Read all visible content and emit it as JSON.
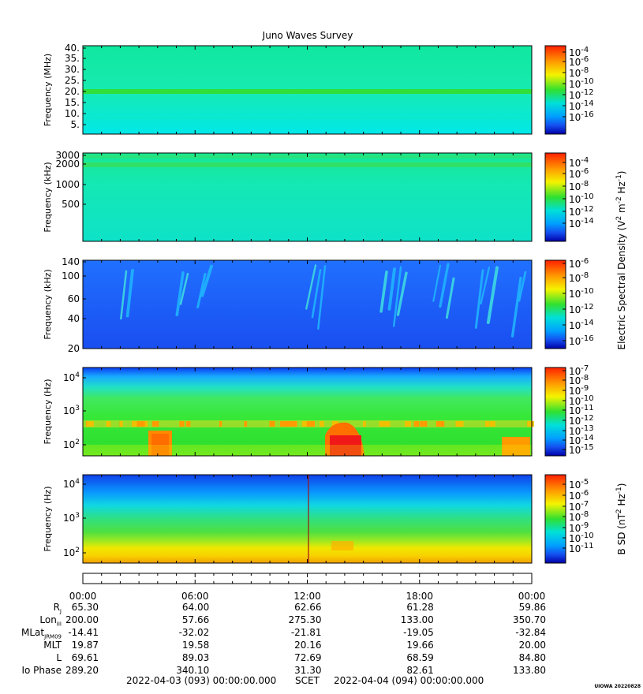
{
  "title": "Juno Waves Survey",
  "credit": "UIOWA 20220828",
  "colors": {
    "red": "#ff2000",
    "orange": "#ff9a00",
    "yellow": "#f4f400",
    "green": "#30e030",
    "cyan": "#00e0d8",
    "sky": "#00a0ff",
    "blue": "#1450f0",
    "navy": "#0000a8"
  },
  "chart_data": [
    {
      "type": "heatmap",
      "ylabel": "Frequency (MHz)",
      "yticks": [
        "40.",
        "35.",
        "30.",
        "25.",
        "20.",
        "15.",
        "10.",
        "5."
      ],
      "ylim": [
        3,
        41
      ],
      "xlim": [
        "2022-04-03 00:00",
        "2022-04-04 00:00"
      ],
      "background": "cyan-green",
      "features": [
        "narrowband emission near 21 MHz"
      ],
      "colorbar": {
        "ticks": [
          "10-4",
          "10-6",
          "10-8",
          "10-10",
          "10-12",
          "10-14",
          "10-16"
        ],
        "exp": [
          "-4",
          "-6",
          "-8",
          "-10",
          "-12",
          "-14",
          "-16"
        ],
        "label": ""
      }
    },
    {
      "type": "heatmap",
      "ylabel": "Frequency (kHz)",
      "yticks": [
        "3000",
        "2000",
        "1000",
        "500"
      ],
      "ylim": [
        150,
        3000
      ],
      "xlim": [
        "2022-04-03 00:00",
        "2022-04-04 00:00"
      ],
      "background": "cyan-green",
      "features": [
        "band near 2000 kHz"
      ],
      "colorbar": {
        "ticks": [
          "10-4",
          "10-6",
          "10-8",
          "10-10",
          "10-12",
          "10-14"
        ],
        "exp": [
          "-4",
          "-6",
          "-8",
          "-10",
          "-12",
          "-14"
        ],
        "label": "Electric Spectral Density (V2 m-2 Hz-1)"
      }
    },
    {
      "type": "heatmap",
      "ylabel": "Frequency (kHz)",
      "yticks": [
        "140",
        "100",
        "60",
        "40",
        "20"
      ],
      "ylim": [
        20,
        140
      ],
      "xlim": [
        "2022-04-03 00:00",
        "2022-04-04 00:00"
      ],
      "background": "blue",
      "features": [
        "drifting cyan emission streaks"
      ],
      "colorbar": {
        "ticks": [
          "10-6",
          "10-8",
          "10-10",
          "10-12",
          "10-14",
          "10-16"
        ],
        "exp": [
          "-6",
          "-8",
          "-10",
          "-12",
          "-14",
          "-16"
        ],
        "label": ""
      }
    },
    {
      "type": "heatmap",
      "ylabel": "Frequency (Hz)",
      "yticks": [
        "104",
        "103",
        "102"
      ],
      "yexp": [
        "4",
        "3",
        "2"
      ],
      "ylim": [
        50,
        20000
      ],
      "xlim": [
        "2022-04-03 00:00",
        "2022-04-04 00:00"
      ],
      "background": "green-blue",
      "features": [
        "orange band near 350 Hz",
        "red bursts near 04:00, 13:30, 22:30"
      ],
      "colorbar": {
        "ticks": [
          "10-7",
          "10-8",
          "10-9",
          "10-10",
          "10-11",
          "10-12",
          "10-13",
          "10-14",
          "10-15"
        ],
        "exp": [
          "-7",
          "-8",
          "-9",
          "-10",
          "-11",
          "-12",
          "-13",
          "-14",
          "-15"
        ],
        "label": ""
      }
    },
    {
      "type": "heatmap",
      "ylabel": "Frequency (Hz)",
      "yticks": [
        "104",
        "103",
        "102"
      ],
      "yexp": [
        "4",
        "3",
        "2"
      ],
      "ylim": [
        50,
        20000
      ],
      "xlim": [
        "2022-04-03 00:00",
        "2022-04-04 00:00"
      ],
      "background": "yellow-green-blue",
      "features": [
        "vertical line near 12:00"
      ],
      "colorbar": {
        "ticks": [
          "10-5",
          "10-6",
          "10-7",
          "10-8",
          "10-9",
          "10-10",
          "10-11"
        ],
        "exp": [
          "-5",
          "-6",
          "-7",
          "-8",
          "-9",
          "-10",
          "-11"
        ],
        "label": "B SD (nT2 Hz-1)"
      }
    }
  ],
  "time_ticks": [
    "00:00",
    "06:00",
    "12:00",
    "18:00",
    "00:00"
  ],
  "ephemeris": [
    {
      "label": "R",
      "sub": "J",
      "values": [
        "65.30",
        "64.00",
        "62.66",
        "61.28",
        "59.86"
      ]
    },
    {
      "label": "Lon",
      "sub": "III",
      "values": [
        "200.00",
        "57.66",
        "275.30",
        "133.00",
        "350.70"
      ]
    },
    {
      "label": "MLat",
      "sub": "JRM09",
      "values": [
        "-14.41",
        "-32.02",
        "-21.81",
        "-19.05",
        "-32.84"
      ]
    },
    {
      "label": "MLT",
      "sub": "",
      "values": [
        "19.87",
        "19.58",
        "20.16",
        "19.66",
        "20.00"
      ]
    },
    {
      "label": "L",
      "sub": "",
      "values": [
        "69.61",
        "89.03",
        "72.69",
        "68.59",
        "84.80"
      ]
    },
    {
      "label": "Io Phase",
      "sub": "",
      "values": [
        "289.20",
        "340.10",
        "31.30",
        "82.61",
        "133.80"
      ]
    }
  ],
  "footer": {
    "start": "2022-04-03 (093) 00:00:00.000",
    "mid": "SCET",
    "end": "2022-04-04 (094) 00:00:00.000"
  }
}
